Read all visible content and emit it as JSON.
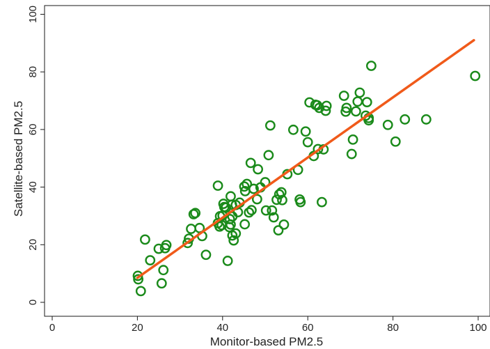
{
  "chart_data": {
    "type": "scatter",
    "title": "",
    "xlabel": "Monitor-based PM2.5",
    "ylabel": "Satellite-based PM2.5",
    "xlim": [
      0,
      100
    ],
    "ylim": [
      0,
      100
    ],
    "xticks": [
      "0",
      "20",
      "40",
      "60",
      "80",
      "100"
    ],
    "yticks": [
      "0",
      "20",
      "40",
      "60",
      "80",
      "100"
    ],
    "grid": false,
    "marker_color": "#1a8a1a",
    "line_color": "#f05a1a",
    "series": [
      {
        "kind": "points",
        "x": [
          20.1,
          20.2,
          20.8,
          21.8,
          23,
          25,
          25.7,
          26.1,
          26.5,
          26.8,
          31.8,
          32.1,
          32.6,
          33.2,
          33.6,
          34.6,
          35.2,
          36.1,
          38.9,
          38.9,
          39.3,
          39.4,
          39.8,
          40,
          40.2,
          40.4,
          40.8,
          41.2,
          41.6,
          41.7,
          41.9,
          41.9,
          42.2,
          42.3,
          42.3,
          42.6,
          43.1,
          43.1,
          43.6,
          44,
          45.1,
          45.2,
          45.3,
          45.7,
          46.2,
          46.6,
          46.8,
          47.3,
          48.1,
          48.3,
          48.9,
          50,
          50.2,
          50.8,
          51.2,
          51.6,
          52,
          52.7,
          53.1,
          53.3,
          53.8,
          54,
          54.4,
          55.2,
          56.6,
          57.7,
          58.1,
          58.3,
          59.5,
          60,
          60.4,
          61.4,
          61.8,
          62.2,
          62.4,
          62.7,
          63.3,
          63.7,
          64.2,
          64.4,
          68.5,
          68.9,
          69.1,
          70.3,
          70.6,
          71.3,
          71.7,
          72.2,
          73.6,
          73.9,
          74.3,
          74.3,
          74.9,
          78.8,
          80.6,
          82.8,
          87.8,
          99.3
        ],
        "y": [
          9.2,
          8,
          3.9,
          21.8,
          14.6,
          18.6,
          6.6,
          11.2,
          18.8,
          19.9,
          20.6,
          22.1,
          25.5,
          30.6,
          31,
          25.8,
          23,
          16.5,
          27.5,
          40.5,
          26.3,
          29.9,
          26.8,
          30.1,
          34.2,
          33.1,
          32.9,
          14.4,
          26.1,
          28.9,
          27,
          36.8,
          33.9,
          29.8,
          23.2,
          21.5,
          23.9,
          33.8,
          31.3,
          34.6,
          40.2,
          27.1,
          38.6,
          41.1,
          31.2,
          48.4,
          32,
          39.4,
          35.8,
          46.2,
          39.9,
          41.7,
          31.9,
          51.1,
          61.4,
          31.9,
          29.5,
          35.6,
          25,
          37.5,
          38.2,
          35.5,
          27,
          44.5,
          59.9,
          46,
          35.7,
          34.8,
          59.3,
          55.6,
          69.4,
          50.8,
          68.6,
          68.4,
          53.2,
          67.5,
          34.8,
          53.1,
          66.5,
          68.2,
          71.7,
          66.2,
          67.5,
          51.5,
          56.5,
          66.3,
          69.7,
          72.8,
          64.8,
          69.5,
          64,
          63.2,
          82.1,
          61.6,
          55.8,
          63.5,
          63.5,
          78.6
        ]
      },
      {
        "kind": "fit-line",
        "x": [
          20,
          99
        ],
        "y": [
          8.5,
          91
        ]
      }
    ]
  }
}
